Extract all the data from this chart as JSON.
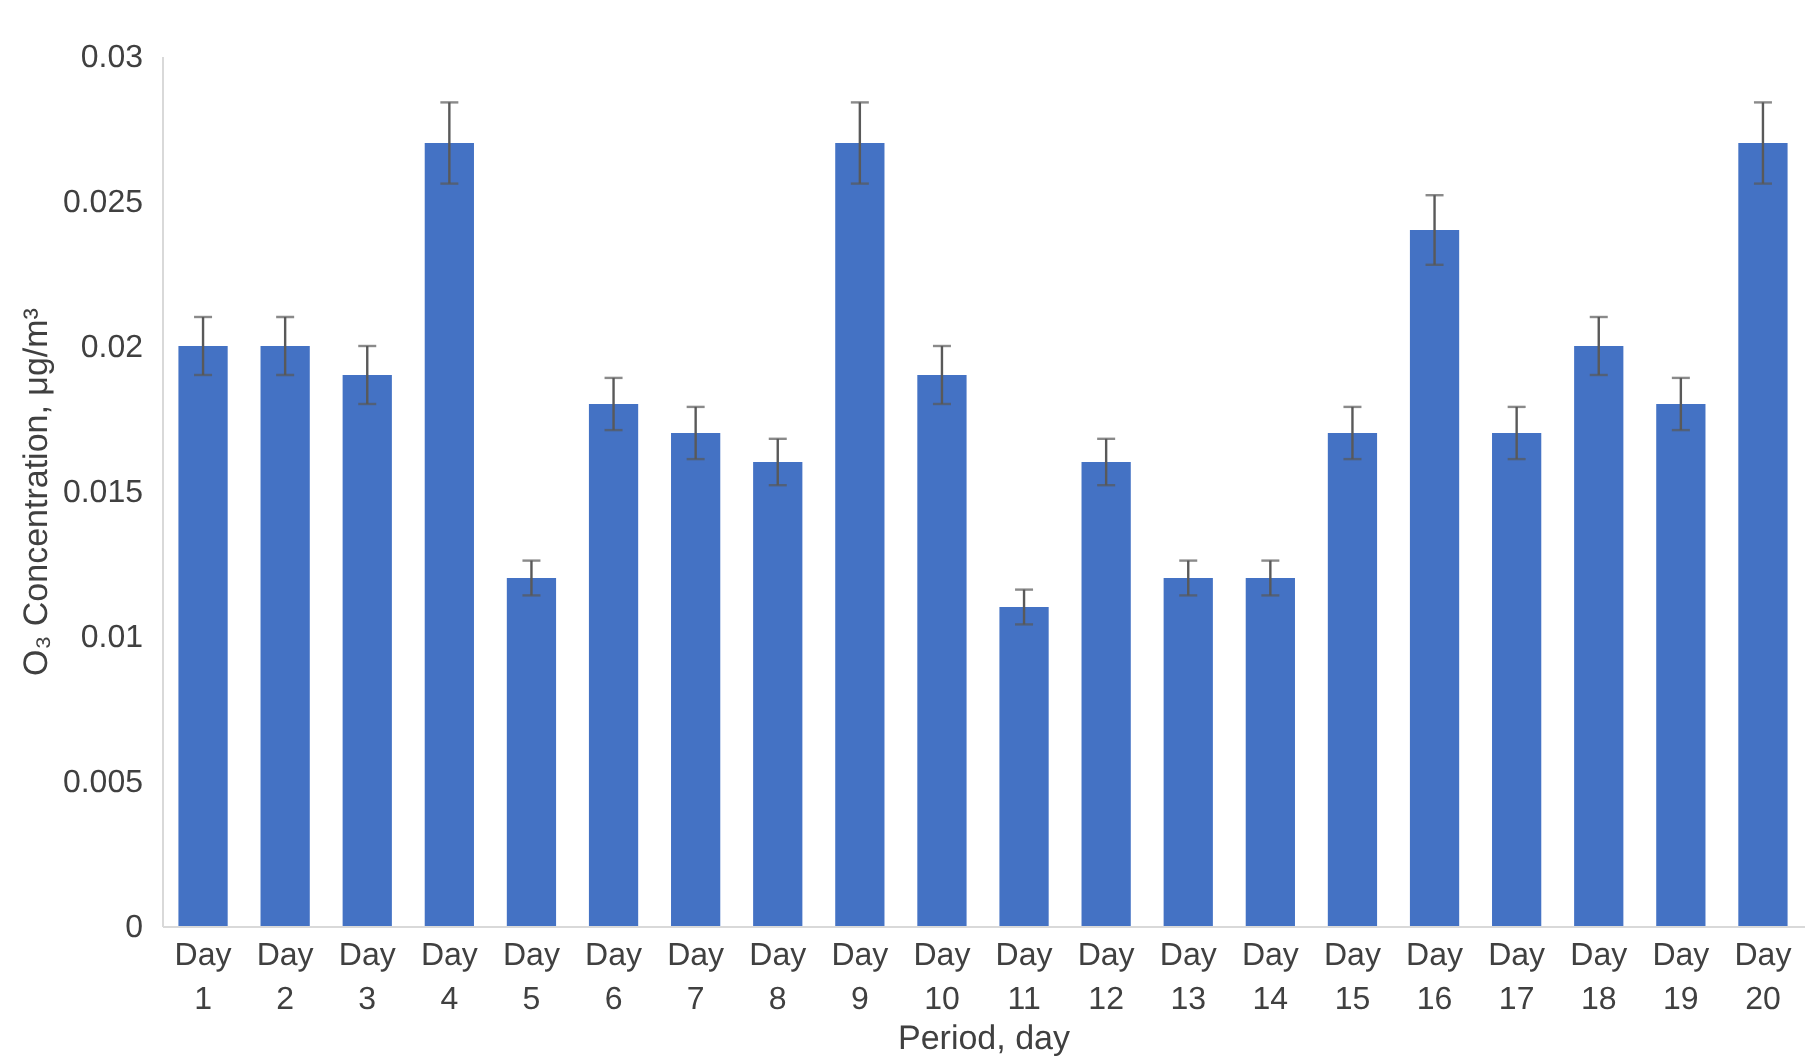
{
  "chart_data": {
    "type": "bar",
    "xlabel": "Period, day",
    "ylabel": "O₃ Concentration, μg/m³",
    "categories": [
      "Day 1",
      "Day 2",
      "Day 3",
      "Day 4",
      "Day 5",
      "Day 6",
      "Day 7",
      "Day 8",
      "Day 9",
      "Day 10",
      "Day 11",
      "Day 12",
      "Day 13",
      "Day 14",
      "Day 15",
      "Day 16",
      "Day 17",
      "Day 18",
      "Day 19",
      "Day 20"
    ],
    "values": [
      0.02,
      0.02,
      0.019,
      0.027,
      0.012,
      0.018,
      0.017,
      0.016,
      0.027,
      0.019,
      0.011,
      0.016,
      0.012,
      0.012,
      0.017,
      0.024,
      0.017,
      0.02,
      0.018,
      0.027
    ],
    "errors": [
      0.001,
      0.001,
      0.001,
      0.0014,
      0.0006,
      0.0009,
      0.0009,
      0.0008,
      0.0014,
      0.001,
      0.0006,
      0.0008,
      0.0006,
      0.0006,
      0.0009,
      0.0012,
      0.0009,
      0.001,
      0.0009,
      0.0014
    ],
    "color": "#4472c4",
    "ylim": [
      0,
      0.03
    ],
    "yticks": [
      0,
      0.005,
      0.01,
      0.015,
      0.02,
      0.025,
      0.03
    ],
    "grid": false
  }
}
